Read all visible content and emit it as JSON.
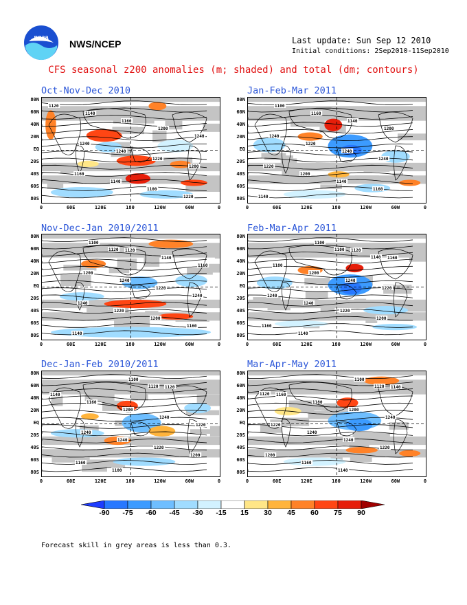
{
  "header": {
    "org": "NWS/NCEP",
    "last_update": "Last update: Sun Sep 12 2010",
    "initial_conditions": "Initial conditions: 2Sep2010-11Sep2010"
  },
  "title": "CFS seasonal z200 anomalies (m; shaded) and total (dm; contours)",
  "panels": [
    {
      "title": "Oct-Nov-Dec 2010",
      "labels": [
        "1120",
        "1140",
        "1160",
        "1200",
        "1240",
        "1240",
        "1240",
        "1220",
        "1200",
        "1160",
        "1140",
        "1100",
        "1220"
      ]
    },
    {
      "title": "Jan-Feb-Mar 2011",
      "labels": [
        "1100",
        "1160",
        "1140",
        "1200",
        "1240",
        "1220",
        "1240",
        "1240",
        "1220",
        "1200",
        "1140",
        "1160",
        "1140"
      ]
    },
    {
      "title": "Nov-Dec-Jan 2010/2011",
      "labels": [
        "1100",
        "1120",
        "1140",
        "1160",
        "1200",
        "1240",
        "1220",
        "1240",
        "1240",
        "1220",
        "1200",
        "1160",
        "1140",
        "1120"
      ]
    },
    {
      "title": "Feb-Mar-Apr 2011",
      "labels": [
        "1100",
        "1120",
        "1160",
        "1180",
        "1200",
        "1240",
        "1220",
        "1240",
        "1240",
        "1220",
        "1200",
        "1160",
        "1140",
        "1100",
        "1140"
      ]
    },
    {
      "title": "Dec-Jan-Feb 2010/2011",
      "labels": [
        "1100",
        "1120",
        "1140",
        "1160",
        "1200",
        "1240",
        "1220",
        "1240",
        "1240",
        "1220",
        "1200",
        "1160",
        "1100",
        "1120"
      ]
    },
    {
      "title": "Mar-Apr-May 2011",
      "labels": [
        "1100",
        "1140",
        "1160",
        "1180",
        "1200",
        "1240",
        "1220",
        "1240",
        "1240",
        "1220",
        "1200",
        "1160",
        "1140",
        "1120",
        "1120"
      ]
    }
  ],
  "axes": {
    "lat_labels": [
      "80N",
      "60N",
      "40N",
      "20N",
      "EQ",
      "20S",
      "40S",
      "60S",
      "80S"
    ],
    "lon_labels": [
      "0",
      "60E",
      "120E",
      "180",
      "120W",
      "60W",
      "0"
    ]
  },
  "colorbar": {
    "labels": [
      "-90",
      "-75",
      "-60",
      "-45",
      "-30",
      "-15",
      "15",
      "30",
      "45",
      "60",
      "75",
      "90"
    ],
    "colors": [
      "#1e3cff",
      "#2878ff",
      "#3c9bff",
      "#6ebeff",
      "#a0dcff",
      "#d2f2ff",
      "#ffffff",
      "#ffe687",
      "#ffb43c",
      "#ff8228",
      "#ff4614",
      "#e61e0a",
      "#a00000"
    ]
  },
  "footnote": "Forecast skill in grey areas is less than 0.3."
}
